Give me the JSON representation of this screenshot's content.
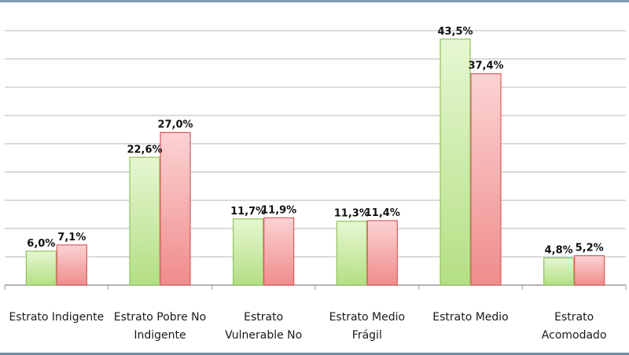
{
  "chart_data": {
    "type": "bar",
    "categories": [
      [
        "Estrato Indigente"
      ],
      [
        "Estrato Pobre No",
        "Indigente"
      ],
      [
        "Estrato",
        "Vulnerable No"
      ],
      [
        "Estrato Medio",
        "Frágil"
      ],
      [
        "Estrato Medio"
      ],
      [
        "Estrato",
        "Acomodado"
      ]
    ],
    "series": [
      {
        "color": "#c4e89a",
        "values": [
          6.0,
          22.6,
          11.7,
          11.3,
          43.5,
          4.8
        ],
        "labels": [
          "6,0%",
          "22,6%",
          "11,7%",
          "11,3%",
          "43,5%",
          "4,8%"
        ]
      },
      {
        "color": "#f4a3a3",
        "values": [
          7.1,
          27.0,
          11.9,
          11.4,
          37.4,
          5.2
        ],
        "labels": [
          "7,1%",
          "27,0%",
          "11,9%",
          "11,4%",
          "37,4%",
          "5,2%"
        ]
      }
    ],
    "ylim": [
      0,
      45
    ],
    "y_gridline_step": 5,
    "grid": true,
    "legend": "none"
  }
}
